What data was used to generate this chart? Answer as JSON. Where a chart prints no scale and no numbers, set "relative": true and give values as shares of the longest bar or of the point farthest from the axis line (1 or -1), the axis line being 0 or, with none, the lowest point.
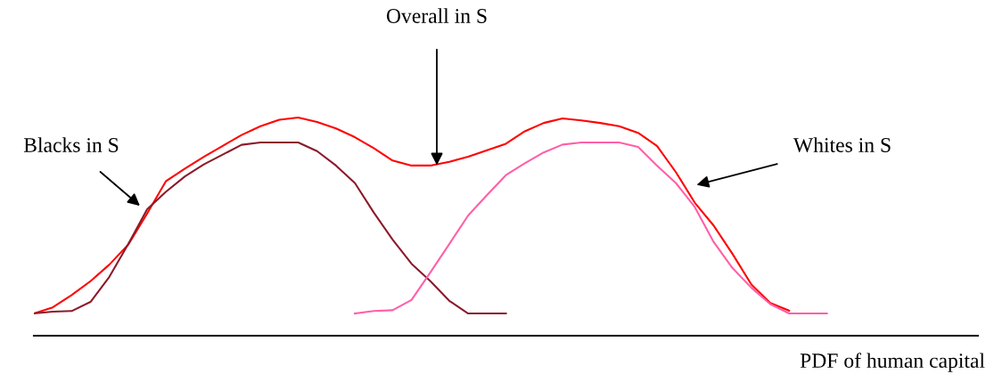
{
  "chart_data": {
    "type": "line",
    "relative": true,
    "xlabel": "PDF of human capital",
    "tick_labels": false,
    "marker": "none",
    "line_style": "solid",
    "categories": [
      null,
      null,
      null,
      null,
      null,
      null,
      null,
      null,
      null,
      null,
      null,
      null,
      null,
      null,
      null,
      null,
      null,
      null,
      null,
      null,
      null,
      null,
      null,
      null,
      null,
      null,
      null,
      null,
      null,
      null,
      null,
      null,
      null,
      null,
      null,
      null,
      null,
      null,
      null,
      null,
      null,
      null,
      null,
      null,
      null,
      null,
      null,
      null,
      null,
      null,
      null
    ],
    "series": [
      {
        "color": "#ff0000",
        "values": [
          0.102,
          0.13,
          0.186,
          0.25,
          0.326,
          0.418,
          0.56,
          0.709,
          0.766,
          0.82,
          0.87,
          0.92,
          0.96,
          0.99,
          1.0,
          0.98,
          0.95,
          0.91,
          0.86,
          0.803,
          0.78,
          0.78,
          0.797,
          0.82,
          0.85,
          0.88,
          0.937,
          0.975,
          0.996,
          0.987,
          0.975,
          0.96,
          0.93,
          0.87,
          0.75,
          0.61,
          0.505,
          0.375,
          0.235,
          0.15,
          0.115,
          null,
          null,
          null,
          null,
          null,
          null,
          null,
          null,
          null,
          null
        ]
      },
      {
        "color": "#8b1a2b",
        "values": [
          0.102,
          0.11,
          0.113,
          0.155,
          0.27,
          0.42,
          0.58,
          0.66,
          0.73,
          0.785,
          0.83,
          0.875,
          0.886,
          0.886,
          0.886,
          0.846,
          0.78,
          0.7,
          0.565,
          0.44,
          0.33,
          0.25,
          0.16,
          0.102,
          0.102,
          0.102,
          null,
          null,
          null,
          null,
          null,
          null,
          null,
          null,
          null,
          null,
          null,
          null,
          null,
          null,
          null,
          null,
          null,
          null,
          null,
          null,
          null,
          null,
          null,
          null,
          null
        ]
      },
      {
        "color": "#ff5fa8",
        "values": [
          null,
          null,
          null,
          null,
          null,
          null,
          null,
          null,
          null,
          null,
          null,
          null,
          null,
          null,
          null,
          null,
          null,
          0.102,
          0.113,
          0.117,
          0.164,
          0.29,
          0.42,
          0.551,
          0.645,
          0.736,
          0.79,
          0.84,
          0.876,
          0.886,
          0.886,
          0.886,
          0.865,
          0.78,
          0.7,
          0.59,
          0.43,
          0.31,
          0.22,
          0.145,
          0.102,
          0.102,
          0.102,
          null,
          null,
          null,
          null,
          null,
          null,
          null,
          null
        ]
      }
    ],
    "annotations": [
      "Overall in S",
      "Blacks in S",
      "Whites in S"
    ]
  }
}
